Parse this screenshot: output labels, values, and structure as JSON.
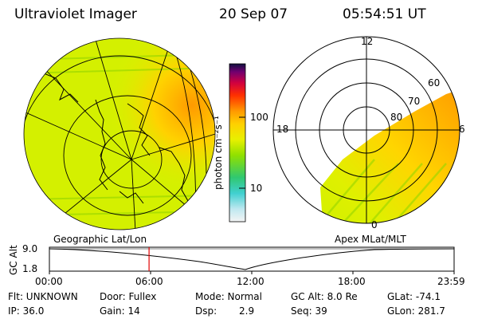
{
  "header": {
    "instrument": "Ultraviolet Imager",
    "date": "20 Sep 07",
    "time": "05:54:51 UT"
  },
  "colorbar": {
    "unit_label": "photon cm⁻²s⁻¹",
    "ticks": [
      "100",
      "10"
    ]
  },
  "polar_plot": {
    "mlt_labels": [
      "12",
      "18",
      "6",
      "0"
    ],
    "lat_labels": [
      "60",
      "70",
      "80"
    ]
  },
  "projection_labels": {
    "left": "Geographic Lat/Lon",
    "right": "Apex MLat/MLT"
  },
  "altitude_strip": {
    "axis_label": "GC Alt",
    "y_ticks": [
      "9.0",
      "1.8"
    ],
    "time_ticks": [
      "00:00",
      "06:00",
      "12:00",
      "18:00",
      "23:59"
    ],
    "current_time_marker_hours": 5.91
  },
  "info": {
    "filter": "Flt: UNKNOWN",
    "door": "Door: Fullex",
    "mode": "Mode: Normal",
    "gc_alt": "GC Alt: 8.0 Re",
    "glat": "GLat: -74.1",
    "ip": "IP: 36.0",
    "gain": "Gain: 14",
    "dsp_label": "Dsp:",
    "dsp_value": "2.9",
    "seq": "Seq: 39",
    "glon": "GLon: 281.7"
  },
  "colors": {
    "accent_marker": "#e00000",
    "dim": "#c8f000",
    "bright": "#ff9a00"
  }
}
